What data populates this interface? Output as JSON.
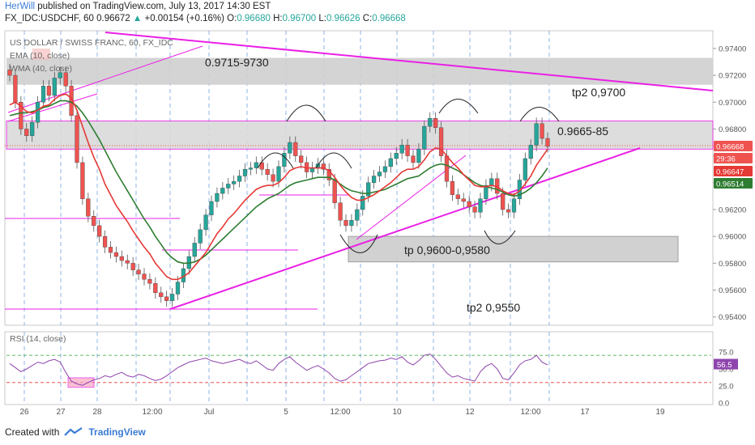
{
  "header": {
    "author": "HerWill",
    "published": "published on TradingView.com, July 13, 2017 14:30 EST",
    "symbol": "FX_IDC:USDCHF, 60",
    "last": "0.96672",
    "change": "+0.00154 (+0.16%)",
    "o_label": "O:",
    "o_value": "0.96680",
    "h_label": "H:",
    "h_value": "0.96700",
    "l_label": "L:",
    "l_value": "0.96626",
    "c_label": "C:",
    "c_value": "0.96668"
  },
  "legend": {
    "title": "US DOLLAR / SWISS FRANC, 60, FX_IDC",
    "ema": "EMA (10, close)",
    "wma": "WMA (40, close)",
    "rsi": "RSI (14, close)"
  },
  "footer": {
    "created_with": "Created with",
    "brand": "TradingView"
  },
  "colors": {
    "bull": "#26a69a",
    "bear": "#ef5350",
    "ema": "#e53935",
    "wma": "#2e7d32",
    "annotation": "#ea20e6",
    "zone": "#cfcfcf",
    "rsi": "#8e44ad",
    "grid": "#3a7bd5"
  },
  "chart_data": [
    {
      "type": "candlestick",
      "ylim": [
        0.9535,
        0.9752
      ],
      "price_ticks": [
        "0.97400",
        "0.97200",
        "0.97000",
        "0.96800",
        "0.96600",
        "0.96400",
        "0.96200",
        "0.96000",
        "0.95800",
        "0.95600",
        "0.95400"
      ],
      "x_tick_labels": [
        "26",
        "27",
        "28",
        "12:00",
        "Jul",
        "5",
        "12:00",
        "10",
        "12",
        "12:00",
        "17",
        "19"
      ],
      "price_badges": [
        {
          "label": "0.96668",
          "color": "#ef5350"
        },
        {
          "label": "29:36",
          "color": "#ef5350"
        },
        {
          "label": "0.96647",
          "color": "#e53935"
        },
        {
          "label": "0.96514",
          "color": "#2e7d32"
        }
      ],
      "annotations": [
        "0.9715-9730",
        "tp2 0,9700",
        "0.9665-85",
        "tp 0,9600-0,9580",
        "tp2 0,9550"
      ],
      "zones": [
        {
          "from": 0.9713,
          "to": 0.9733
        },
        {
          "from": 0.9665,
          "to": 0.9686
        },
        {
          "from": 0.9581,
          "to": 0.96
        }
      ],
      "closes": [
        0.972,
        0.97,
        0.968,
        0.9675,
        0.9685,
        0.97,
        0.9712,
        0.9705,
        0.9718,
        0.9722,
        0.9712,
        0.969,
        0.9655,
        0.9628,
        0.9615,
        0.9608,
        0.96,
        0.9592,
        0.9588,
        0.9585,
        0.9582,
        0.958,
        0.9575,
        0.9572,
        0.9568,
        0.9565,
        0.9558,
        0.9555,
        0.9552,
        0.9557,
        0.9566,
        0.9576,
        0.9585,
        0.9595,
        0.9605,
        0.9616,
        0.9626,
        0.9632,
        0.9636,
        0.9639,
        0.9641,
        0.9645,
        0.965,
        0.9651,
        0.9655,
        0.965,
        0.9646,
        0.9641,
        0.9652,
        0.9662,
        0.967,
        0.966,
        0.9655,
        0.9648,
        0.9651,
        0.9654,
        0.965,
        0.9642,
        0.9625,
        0.9612,
        0.9608,
        0.9612,
        0.962,
        0.963,
        0.964,
        0.9645,
        0.9648,
        0.9652,
        0.9658,
        0.9662,
        0.9668,
        0.966,
        0.9655,
        0.9665,
        0.9682,
        0.9688,
        0.9681,
        0.966,
        0.9641,
        0.9631,
        0.9628,
        0.9626,
        0.9622,
        0.9618,
        0.9628,
        0.9638,
        0.9643,
        0.9632,
        0.962,
        0.9618,
        0.9628,
        0.9642,
        0.9658,
        0.9668,
        0.9684,
        0.9673,
        0.9667
      ],
      "ema_10": [
        0.9698,
        0.97,
        0.9697,
        0.9693,
        0.9692,
        0.9694,
        0.9697,
        0.9698,
        0.9702,
        0.9705,
        0.9706,
        0.9703,
        0.9694,
        0.9682,
        0.967,
        0.9659,
        0.965,
        0.9639,
        0.9631,
        0.9623,
        0.9617,
        0.9611,
        0.9604,
        0.9598,
        0.9592,
        0.9587,
        0.958,
        0.9575,
        0.957,
        0.9568,
        0.9568,
        0.957,
        0.9573,
        0.9578,
        0.9583,
        0.9588,
        0.9595,
        0.9602,
        0.9607,
        0.9613,
        0.9617,
        0.9622,
        0.9627,
        0.9631,
        0.9635,
        0.9637,
        0.9638,
        0.9638,
        0.964,
        0.9644,
        0.9649,
        0.9651,
        0.9652,
        0.9651,
        0.9651,
        0.9651,
        0.9651,
        0.9649,
        0.9644,
        0.9638,
        0.9633,
        0.9629,
        0.9627,
        0.9627,
        0.9629,
        0.9631,
        0.9634,
        0.9637,
        0.964,
        0.9644,
        0.9648,
        0.965,
        0.965,
        0.9652,
        0.9657,
        0.9663,
        0.9666,
        0.9665,
        0.966,
        0.9655,
        0.9651,
        0.9646,
        0.9642,
        0.9638,
        0.9637,
        0.9637,
        0.9638,
        0.9637,
        0.9634,
        0.9632,
        0.9631,
        0.9634,
        0.9639,
        0.9645,
        0.9653,
        0.9659,
        0.9665
      ],
      "wma_40": [
        0.969,
        0.9691,
        0.9692,
        0.9692,
        0.9693,
        0.9694,
        0.9696,
        0.9697,
        0.9699,
        0.9701,
        0.9701,
        0.97,
        0.9697,
        0.9692,
        0.9686,
        0.9679,
        0.9672,
        0.9664,
        0.9656,
        0.9648,
        0.9641,
        0.9634,
        0.9627,
        0.962,
        0.9613,
        0.9607,
        0.96,
        0.9594,
        0.9588,
        0.9584,
        0.9581,
        0.958,
        0.958,
        0.9581,
        0.9583,
        0.9586,
        0.959,
        0.9594,
        0.9598,
        0.9602,
        0.9606,
        0.961,
        0.9614,
        0.9618,
        0.9622,
        0.9625,
        0.9628,
        0.963,
        0.9632,
        0.9635,
        0.9638,
        0.964,
        0.9641,
        0.9642,
        0.9643,
        0.9644,
        0.9644,
        0.9644,
        0.9642,
        0.9639,
        0.9636,
        0.9634,
        0.9633,
        0.9632,
        0.9632,
        0.9633,
        0.9634,
        0.9635,
        0.9637,
        0.9639,
        0.9641,
        0.9643,
        0.9644,
        0.9645,
        0.9648,
        0.9651,
        0.9653,
        0.9654,
        0.9653,
        0.9651,
        0.9649,
        0.9646,
        0.9643,
        0.964,
        0.9638,
        0.9637,
        0.9636,
        0.9635,
        0.9633,
        0.9631,
        0.963,
        0.9631,
        0.9633,
        0.9636,
        0.964,
        0.9645,
        0.9651
      ],
      "rsi": {
        "ylim": [
          0,
          100
        ],
        "ticks": [
          "75.0",
          "50.0",
          "25.0",
          "0.0"
        ],
        "levels": [
          70,
          30
        ],
        "current": "56.5",
        "values": [
          58,
          52,
          46,
          50,
          55,
          60,
          58,
          62,
          64,
          60,
          45,
          32,
          28,
          26,
          30,
          34,
          36,
          40,
          38,
          42,
          45,
          40,
          38,
          42,
          40,
          36,
          33,
          35,
          40,
          46,
          52,
          56,
          60,
          62,
          64,
          66,
          62,
          60,
          58,
          60,
          62,
          64,
          60,
          58,
          62,
          56,
          50,
          48,
          58,
          64,
          68,
          60,
          54,
          48,
          52,
          55,
          50,
          44,
          36,
          32,
          34,
          40,
          46,
          52,
          58,
          60,
          62,
          63,
          66,
          64,
          68,
          60,
          56,
          62,
          70,
          72,
          64,
          54,
          44,
          38,
          40,
          36,
          34,
          32,
          46,
          54,
          58,
          50,
          36,
          34,
          44,
          56,
          62,
          64,
          70,
          60,
          56
        ]
      }
    }
  ]
}
